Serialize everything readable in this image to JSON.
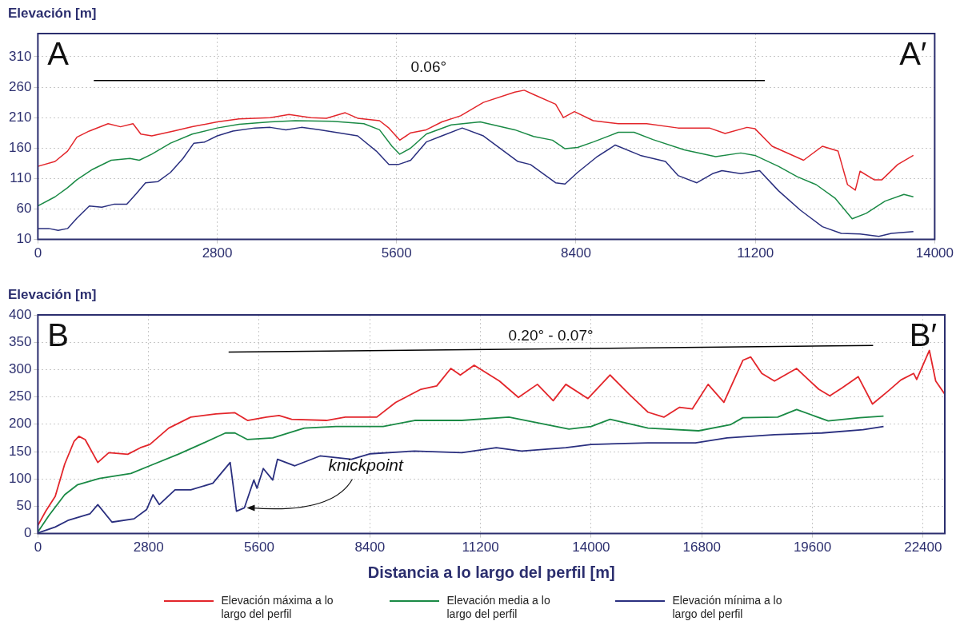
{
  "chart_data": [
    {
      "type": "line",
      "ylabel": "Elevación [m]",
      "xlim": [
        0,
        14000
      ],
      "xticks": [
        0,
        2800,
        5600,
        8400,
        11200,
        14000
      ],
      "ylim": [
        10,
        348
      ],
      "yticks": [
        10,
        60,
        110,
        160,
        210,
        260,
        310
      ],
      "grid": true,
      "annotations": [
        "A",
        "A′",
        {
          "text": "0.06°",
          "x": 6100,
          "y": 271
        }
      ],
      "series": [
        {
          "color": "#e3262b",
          "x": [
            0,
            268,
            463,
            609,
            803,
            1096,
            1290,
            1485,
            1607,
            1778,
            2118,
            2410,
            2800,
            3141,
            3628,
            3920,
            4261,
            4505,
            4797,
            4992,
            5333,
            5479,
            5649,
            5820,
            6063,
            6307,
            6599,
            6955,
            7445,
            7592,
            7739,
            8082,
            8204,
            8376,
            8670,
            9062,
            9503,
            9993,
            10483,
            10728,
            11071,
            11193,
            11463,
            11953,
            12247,
            12492,
            12639,
            12761,
            12835,
            13055,
            13177,
            13422,
            13667
          ],
          "values": [
            130,
            138,
            155,
            178,
            188,
            200,
            195,
            200,
            183,
            180,
            188,
            195,
            203,
            208,
            210,
            215,
            210,
            209,
            218,
            209,
            205,
            193,
            173,
            185,
            190,
            203,
            213,
            235,
            252,
            255,
            248,
            232,
            210,
            220,
            205,
            200,
            200,
            193,
            193,
            184,
            194,
            192,
            163,
            140,
            163,
            155,
            100,
            91,
            122,
            108,
            108,
            133,
            148
          ]
        },
        {
          "color": "#1a8a45",
          "x": [
            0,
            268,
            463,
            609,
            852,
            1144,
            1437,
            1583,
            1778,
            2070,
            2410,
            2800,
            3141,
            3628,
            4018,
            4602,
            5089,
            5333,
            5528,
            5649,
            5820,
            6063,
            6453,
            6906,
            7445,
            7739,
            8033,
            8229,
            8425,
            8670,
            9062,
            9307,
            9601,
            10091,
            10581,
            10973,
            11193,
            11561,
            11855,
            12149,
            12443,
            12712,
            12932,
            13226,
            13520,
            13667
          ],
          "values": [
            65,
            80,
            95,
            108,
            125,
            140,
            143,
            140,
            150,
            168,
            183,
            193,
            199,
            203,
            205,
            204,
            200,
            190,
            163,
            150,
            160,
            183,
            198,
            203,
            190,
            179,
            173,
            159,
            161,
            170,
            186,
            186,
            174,
            157,
            146,
            152,
            148,
            130,
            113,
            100,
            78,
            44,
            53,
            73,
            84,
            80
          ]
        },
        {
          "color": "#2a2f7f",
          "x": [
            0,
            170,
            317,
            463,
            609,
            803,
            998,
            1193,
            1388,
            1534,
            1680,
            1875,
            2070,
            2265,
            2435,
            2605,
            2800,
            3044,
            3385,
            3628,
            3872,
            4115,
            4407,
            4700,
            4992,
            5284,
            5479,
            5625,
            5820,
            6063,
            6307,
            6624,
            6955,
            7494,
            7690,
            8082,
            8229,
            8425,
            8719,
            9013,
            9405,
            9797,
            9993,
            10287,
            10532,
            10679,
            10973,
            11267,
            11561,
            11904,
            12247,
            12541,
            12835,
            13128,
            13324,
            13667
          ],
          "values": [
            28,
            28,
            25,
            28,
            45,
            65,
            63,
            68,
            68,
            85,
            103,
            105,
            120,
            143,
            168,
            170,
            180,
            188,
            193,
            194,
            190,
            194,
            190,
            185,
            180,
            155,
            133,
            133,
            140,
            170,
            180,
            193,
            180,
            138,
            133,
            103,
            101,
            120,
            145,
            165,
            148,
            138,
            115,
            103,
            118,
            123,
            118,
            123,
            90,
            58,
            31,
            20,
            19,
            15,
            20,
            23
          ]
        },
        {
          "type": "line",
          "color": "#000000",
          "x": [
            873,
            11348
          ],
          "values": [
            271,
            271
          ]
        }
      ]
    },
    {
      "type": "line",
      "ylabel": "Elevación [m]",
      "xlabel": "Distancia a lo largo del perfil [m]",
      "legend": "bottom",
      "xlim": [
        0,
        22950
      ],
      "xticks": [
        0,
        2800,
        5600,
        8400,
        11200,
        14000,
        16800,
        19600,
        22400
      ],
      "ylim": [
        0,
        400
      ],
      "yticks": [
        0,
        50,
        100,
        150,
        200,
        250,
        300,
        350,
        400
      ],
      "grid": true,
      "annotations": [
        "B",
        "B′",
        {
          "text": "0.20° - 0.07°",
          "x": 12980,
          "y": 338
        },
        {
          "text": "knickpoint",
          "x": 5225,
          "y": 47
        }
      ],
      "series": [
        {
          "name": "Elevación máxima a lo largo del perfil",
          "color": "#e3262b",
          "x": [
            0,
            199,
            439,
            678,
            917,
            1037,
            1197,
            1516,
            1795,
            2274,
            2593,
            2832,
            3311,
            3869,
            4507,
            4986,
            5305,
            5784,
            6103,
            6422,
            7299,
            7778,
            8576,
            9054,
            9693,
            10092,
            10450,
            10690,
            11040,
            11680,
            12160,
            12640,
            13040,
            13360,
            13920,
            14480,
            14960,
            15440,
            15840,
            16240,
            16560,
            16960,
            17360,
            17840,
            18040,
            18320,
            18640,
            19200,
            19760,
            20040,
            20360,
            20760,
            21120,
            21520,
            21840,
            22160,
            22240,
            22560,
            22720,
            22950
          ],
          "values": [
            15,
            41,
            68,
            127,
            169,
            178,
            172,
            130,
            148,
            145,
            157,
            163,
            193,
            213,
            219,
            221,
            207,
            213,
            216,
            209,
            207,
            213,
            213,
            240,
            264,
            270,
            302,
            290,
            308,
            279,
            249,
            273,
            243,
            273,
            247,
            290,
            255,
            222,
            213,
            231,
            228,
            273,
            240,
            317,
            323,
            293,
            279,
            302,
            264,
            252,
            267,
            287,
            237,
            261,
            281,
            293,
            282,
            335,
            279,
            255
          ]
        },
        {
          "name": "Elevación media a lo largo del perfil",
          "color": "#1a8a45",
          "x": [
            0,
            279,
            678,
            997,
            1556,
            2354,
            2832,
            3550,
            4108,
            4746,
            4986,
            5305,
            5943,
            6741,
            7539,
            8736,
            9534,
            10730,
            11920,
            13440,
            14000,
            14480,
            15440,
            16720,
            17520,
            17840,
            18720,
            19200,
            20000,
            20800,
            21400
          ],
          "values": [
            3,
            33,
            71,
            89,
            101,
            110,
            124,
            145,
            163,
            184,
            184,
            172,
            175,
            193,
            196,
            196,
            207,
            207,
            213,
            191,
            196,
            209,
            193,
            188,
            199,
            212,
            213,
            227,
            206,
            212,
            215
          ]
        },
        {
          "name": "Elevación mínima a lo largo del perfil",
          "color": "#2a2f7f",
          "x": [
            0,
            439,
            758,
            1316,
            1516,
            1875,
            2433,
            2752,
            2912,
            3071,
            3470,
            3869,
            4427,
            4866,
            5026,
            5225,
            5465,
            5545,
            5704,
            5943,
            6063,
            6502,
            7140,
            7937,
            8416,
            9534,
            10730,
            11600,
            12240,
            13360,
            14000,
            15440,
            16640,
            17440,
            18640,
            19840,
            20880,
            21400
          ],
          "values": [
            1,
            12,
            24,
            36,
            53,
            21,
            27,
            44,
            71,
            53,
            80,
            80,
            92,
            130,
            41,
            47,
            98,
            83,
            119,
            98,
            136,
            124,
            142,
            136,
            146,
            151,
            148,
            157,
            151,
            157,
            163,
            166,
            166,
            175,
            181,
            184,
            190,
            196
          ]
        },
        {
          "type": "line",
          "color": "#000000",
          "x": [
            4826,
            21136
          ],
          "values": [
            332,
            344
          ]
        }
      ]
    }
  ]
}
